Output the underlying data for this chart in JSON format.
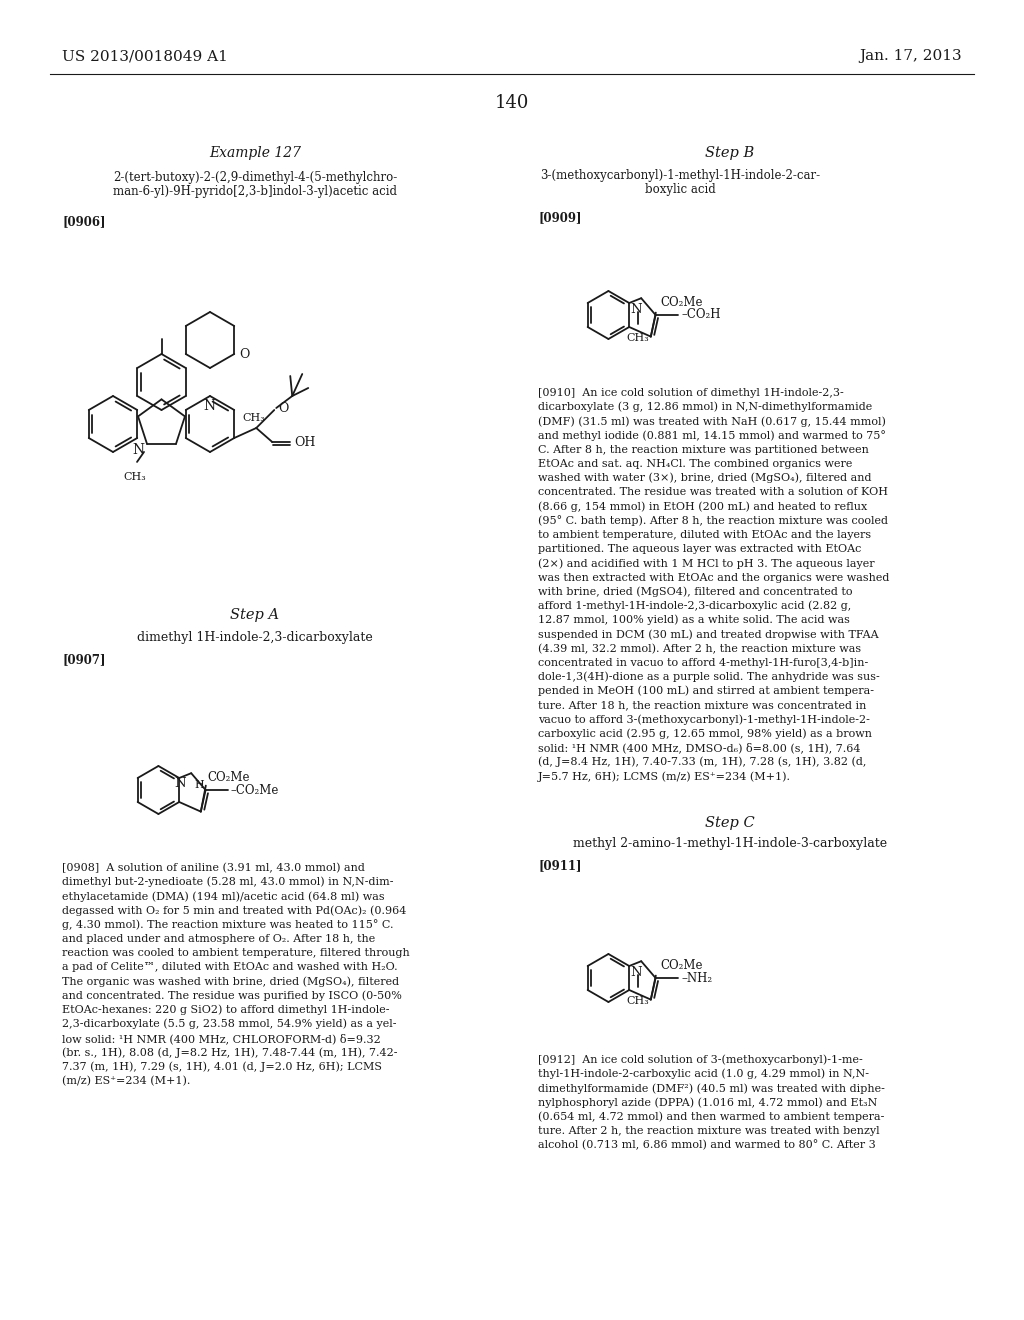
{
  "page_number": "140",
  "header_left": "US 2013/0018049 A1",
  "header_right": "Jan. 17, 2013",
  "background_color": "#ffffff",
  "text_color": "#1a1a1a",
  "example_127_title": "Example 127",
  "compound_name_left_1": "2-(tert-butoxy)-2-(2,9-dimethyl-4-(5-methylchro-",
  "compound_name_left_2": "man-6-yl)-9H-pyrido[2,3-b]indol-3-yl)acetic acid",
  "ref_906": "[0906]",
  "step_a_label": "Step A",
  "step_a_compound": "dimethyl 1H-indole-2,3-dicarboxylate",
  "ref_907": "[0907]",
  "step_b_label": "Step B",
  "step_b_compound_1": "3-(methoxycarbonyl)-1-methyl-1H-indole-2-car-",
  "step_b_compound_2": "boxylic acid",
  "ref_909": "[0909]",
  "step_c_label": "Step C",
  "step_c_compound": "methyl 2-amino-1-methyl-1H-indole-3-carboxylate",
  "ref_911": "[0911]",
  "para908_lines": [
    "[0908]  A solution of aniline (3.91 ml, 43.0 mmol) and",
    "dimethyl but-2-ynedioate (5.28 ml, 43.0 mmol) in N,N-dim-",
    "ethylacetamide (DMA) (194 ml)/acetic acid (64.8 ml) was",
    "degassed with O₂ for 5 min and treated with Pd(OAc)₂ (0.964",
    "g, 4.30 mmol). The reaction mixture was heated to 115° C.",
    "and placed under and atmosphere of O₂. After 18 h, the",
    "reaction was cooled to ambient temperature, filtered through",
    "a pad of Celite™, diluted with EtOAc and washed with H₂O.",
    "The organic was washed with brine, dried (MgSO₄), filtered",
    "and concentrated. The residue was purified by ISCO (0-50%",
    "EtOAc-hexanes: 220 g SiO2) to afford dimethyl 1H-indole-",
    "2,3-dicarboxylate (5.5 g, 23.58 mmol, 54.9% yield) as a yel-",
    "low solid: ¹H NMR (400 MHz, CHLOROFORM-d) δ=9.32",
    "(br. s., 1H), 8.08 (d, J=8.2 Hz, 1H), 7.48-7.44 (m, 1H), 7.42-",
    "7.37 (m, 1H), 7.29 (s, 1H), 4.01 (d, J=2.0 Hz, 6H); LCMS",
    "(m/z) ES⁺=234 (M+1)."
  ],
  "para910_lines": [
    "[0910]  An ice cold solution of dimethyl 1H-indole-2,3-",
    "dicarboxylate (3 g, 12.86 mmol) in N,N-dimethylformamide",
    "(DMF) (31.5 ml) was treated with NaH (0.617 g, 15.44 mmol)",
    "and methyl iodide (0.881 ml, 14.15 mmol) and warmed to 75°",
    "C. After 8 h, the reaction mixture was partitioned between",
    "EtOAc and sat. aq. NH₄Cl. The combined organics were",
    "washed with water (3×), brine, dried (MgSO₄), filtered and",
    "concentrated. The residue was treated with a solution of KOH",
    "(8.66 g, 154 mmol) in EtOH (200 mL) and heated to reflux",
    "(95° C. bath temp). After 8 h, the reaction mixture was cooled",
    "to ambient temperature, diluted with EtOAc and the layers",
    "partitioned. The aqueous layer was extracted with EtOAc",
    "(2×) and acidified with 1 M HCl to pH 3. The aqueous layer",
    "was then extracted with EtOAc and the organics were washed",
    "with brine, dried (MgSO4), filtered and concentrated to",
    "afford 1-methyl-1H-indole-2,3-dicarboxylic acid (2.82 g,",
    "12.87 mmol, 100% yield) as a white solid. The acid was",
    "suspended in DCM (30 mL) and treated dropwise with TFAA",
    "(4.39 ml, 32.2 mmol). After 2 h, the reaction mixture was",
    "concentrated in vacuo to afford 4-methyl-1H-furo[3,4-b]in-",
    "dole-1,3(4H)-dione as a purple solid. The anhydride was sus-",
    "pended in MeOH (100 mL) and stirred at ambient tempera-",
    "ture. After 18 h, the reaction mixture was concentrated in",
    "vacuo to afford 3-(methoxycarbonyl)-1-methyl-1H-indole-2-",
    "carboxylic acid (2.95 g, 12.65 mmol, 98% yield) as a brown",
    "solid: ¹H NMR (400 MHz, DMSO-d₆) δ=8.00 (s, 1H), 7.64",
    "(d, J=8.4 Hz, 1H), 7.40-7.33 (m, 1H), 7.28 (s, 1H), 3.82 (d,",
    "J=5.7 Hz, 6H); LCMS (m/z) ES⁺=234 (M+1)."
  ],
  "para912_lines": [
    "[0912]  An ice cold solution of 3-(methoxycarbonyl)-1-me-",
    "thyl-1H-indole-2-carboxylic acid (1.0 g, 4.29 mmol) in N,N-",
    "dimethylformamide (DMF²) (40.5 ml) was treated with diphe-",
    "nylphosphoryl azide (DPPA) (1.016 ml, 4.72 mmol) and Et₃N",
    "(0.654 ml, 4.72 mmol) and then warmed to ambient tempera-",
    "ture. After 2 h, the reaction mixture was treated with benzyl",
    "alcohol (0.713 ml, 6.86 mmol) and warmed to 80° C. After 3"
  ]
}
